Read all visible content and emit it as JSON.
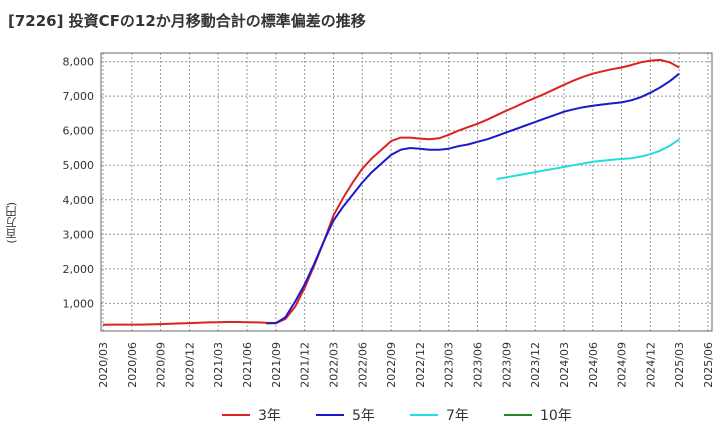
{
  "chart_data": {
    "type": "line",
    "title": "[7226]  投資CFの12か月移動合計の標準偏差の推移",
    "ylabel": "(百万円)",
    "xlabel": "",
    "ylim": [
      200,
      8250
    ],
    "yticks": [
      "1,000",
      "2,000",
      "3,000",
      "4,000",
      "5,000",
      "6,000",
      "7,000",
      "8,000"
    ],
    "ytick_values": [
      1000,
      2000,
      3000,
      4000,
      5000,
      6000,
      7000,
      8000
    ],
    "xticks": [
      "2020/03",
      "2020/06",
      "2020/09",
      "2020/12",
      "2021/03",
      "2021/06",
      "2021/09",
      "2021/12",
      "2022/03",
      "2022/06",
      "2022/09",
      "2022/12",
      "2023/03",
      "2023/06",
      "2023/09",
      "2023/12",
      "2024/03",
      "2024/06",
      "2024/09",
      "2024/12",
      "2025/03",
      "2025/06"
    ],
    "grid": true,
    "legend_position": "bottom",
    "series": [
      {
        "name": "3年",
        "color": "#dd2222",
        "x": [
          "2020/03",
          "2020/04",
          "2020/05",
          "2020/06",
          "2020/07",
          "2020/08",
          "2020/09",
          "2020/10",
          "2020/11",
          "2020/12",
          "2021/01",
          "2021/02",
          "2021/03",
          "2021/04",
          "2021/05",
          "2021/06",
          "2021/07",
          "2021/08",
          "2021/09",
          "2021/10",
          "2021/11",
          "2021/12",
          "2022/01",
          "2022/02",
          "2022/03",
          "2022/04",
          "2022/05",
          "2022/06",
          "2022/07",
          "2022/08",
          "2022/09",
          "2022/10",
          "2022/11",
          "2022/12",
          "2023/01",
          "2023/02",
          "2023/03",
          "2023/04",
          "2023/05",
          "2023/06",
          "2023/07",
          "2023/08",
          "2023/09",
          "2023/10",
          "2023/11",
          "2023/12",
          "2024/01",
          "2024/02",
          "2024/03",
          "2024/04",
          "2024/05",
          "2024/06",
          "2024/07",
          "2024/08",
          "2024/09",
          "2024/10",
          "2024/11",
          "2024/12",
          "2025/01",
          "2025/02",
          "2025/03"
        ],
        "values": [
          380,
          385,
          385,
          385,
          385,
          390,
          400,
          410,
          420,
          430,
          440,
          450,
          455,
          460,
          460,
          455,
          450,
          440,
          430,
          550,
          900,
          1450,
          2100,
          2800,
          3550,
          4050,
          4500,
          4900,
          5200,
          5450,
          5700,
          5800,
          5800,
          5770,
          5750,
          5780,
          5880,
          6000,
          6100,
          6200,
          6320,
          6450,
          6580,
          6700,
          6830,
          6950,
          7070,
          7200,
          7330,
          7450,
          7560,
          7650,
          7720,
          7780,
          7830,
          7900,
          7980,
          8030,
          8050,
          7980,
          7830
        ]
      },
      {
        "name": "5年",
        "color": "#1a1acc",
        "x": [
          "2021/08",
          "2021/09",
          "2021/10",
          "2021/11",
          "2021/12",
          "2022/01",
          "2022/02",
          "2022/03",
          "2022/04",
          "2022/05",
          "2022/06",
          "2022/07",
          "2022/08",
          "2022/09",
          "2022/10",
          "2022/11",
          "2022/12",
          "2023/01",
          "2023/02",
          "2023/03",
          "2023/04",
          "2023/05",
          "2023/06",
          "2023/07",
          "2023/08",
          "2023/09",
          "2023/10",
          "2023/11",
          "2023/12",
          "2024/01",
          "2024/02",
          "2024/03",
          "2024/04",
          "2024/05",
          "2024/06",
          "2024/07",
          "2024/08",
          "2024/09",
          "2024/10",
          "2024/11",
          "2024/12",
          "2025/01",
          "2025/02",
          "2025/03"
        ],
        "values": [
          420,
          430,
          600,
          1050,
          1550,
          2150,
          2800,
          3400,
          3800,
          4150,
          4500,
          4800,
          5050,
          5300,
          5450,
          5500,
          5480,
          5450,
          5450,
          5480,
          5550,
          5600,
          5680,
          5750,
          5850,
          5950,
          6050,
          6150,
          6250,
          6350,
          6450,
          6550,
          6620,
          6680,
          6720,
          6760,
          6790,
          6820,
          6880,
          6970,
          7100,
          7250,
          7430,
          7650
        ]
      },
      {
        "name": "7年",
        "color": "#22dddd",
        "x": [
          "2023/08",
          "2023/09",
          "2023/10",
          "2023/11",
          "2023/12",
          "2024/01",
          "2024/02",
          "2024/03",
          "2024/04",
          "2024/05",
          "2024/06",
          "2024/07",
          "2024/08",
          "2024/09",
          "2024/10",
          "2024/11",
          "2024/12",
          "2025/01",
          "2025/02",
          "2025/03"
        ],
        "values": [
          4600,
          4650,
          4700,
          4750,
          4800,
          4850,
          4900,
          4950,
          5000,
          5050,
          5100,
          5130,
          5160,
          5180,
          5200,
          5250,
          5320,
          5420,
          5560,
          5750
        ]
      },
      {
        "name": "10年",
        "color": "#228822",
        "x": [],
        "values": []
      }
    ]
  }
}
